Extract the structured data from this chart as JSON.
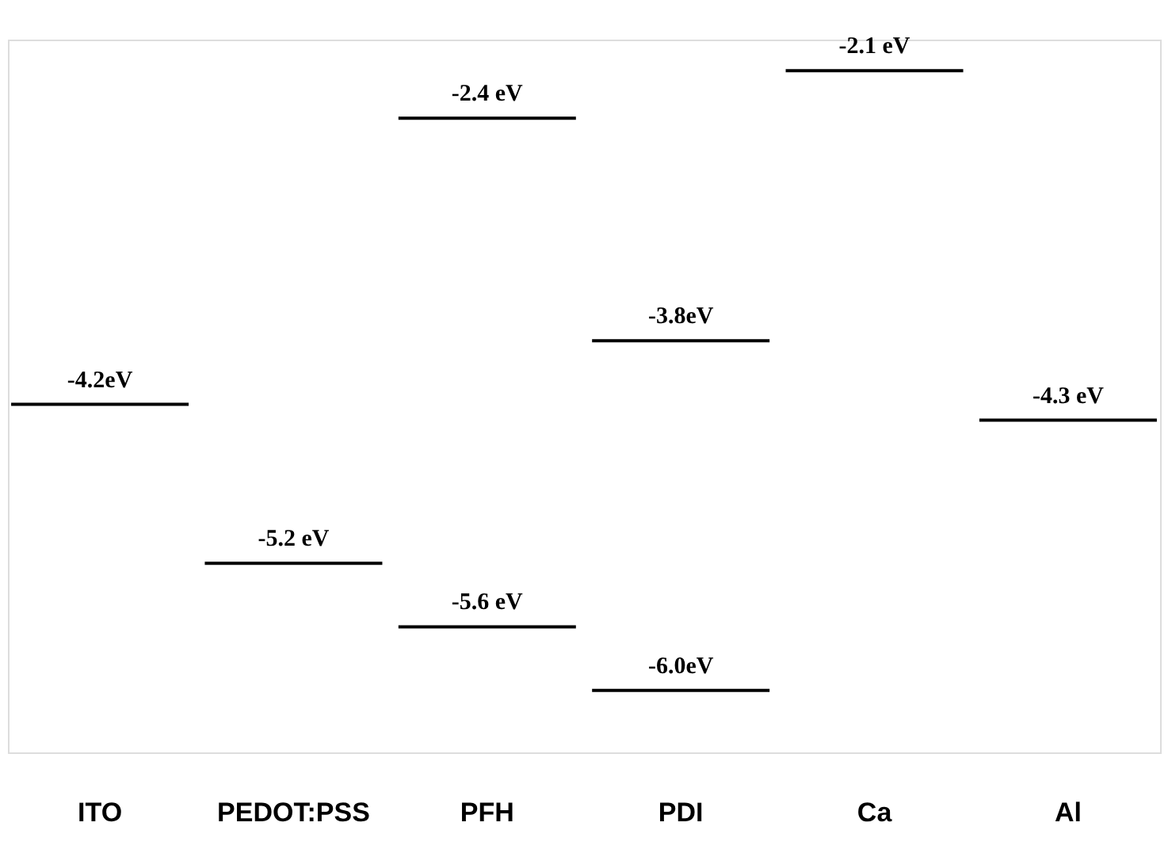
{
  "chart_data": {
    "type": "other",
    "categories": [
      "ITO",
      "PEDOT:PSS",
      "PFH",
      "PDI",
      "Ca",
      "Al"
    ],
    "series": [
      {
        "color": "#000000",
        "values": [
          -4.2,
          null,
          -2.4,
          -3.8,
          -2.1,
          -4.3
        ],
        "value_labels": [
          "-4.2eV",
          null,
          "-2.4 eV",
          "-3.8eV",
          "-2.1 eV",
          "-4.3 eV"
        ]
      },
      {
        "color": "#000000",
        "values": [
          null,
          -5.2,
          -5.6,
          -6.0,
          null,
          null
        ],
        "value_labels": [
          null,
          "-5.2 eV",
          "-5.6 eV",
          "-6.0eV",
          null,
          null
        ]
      }
    ]
  }
}
